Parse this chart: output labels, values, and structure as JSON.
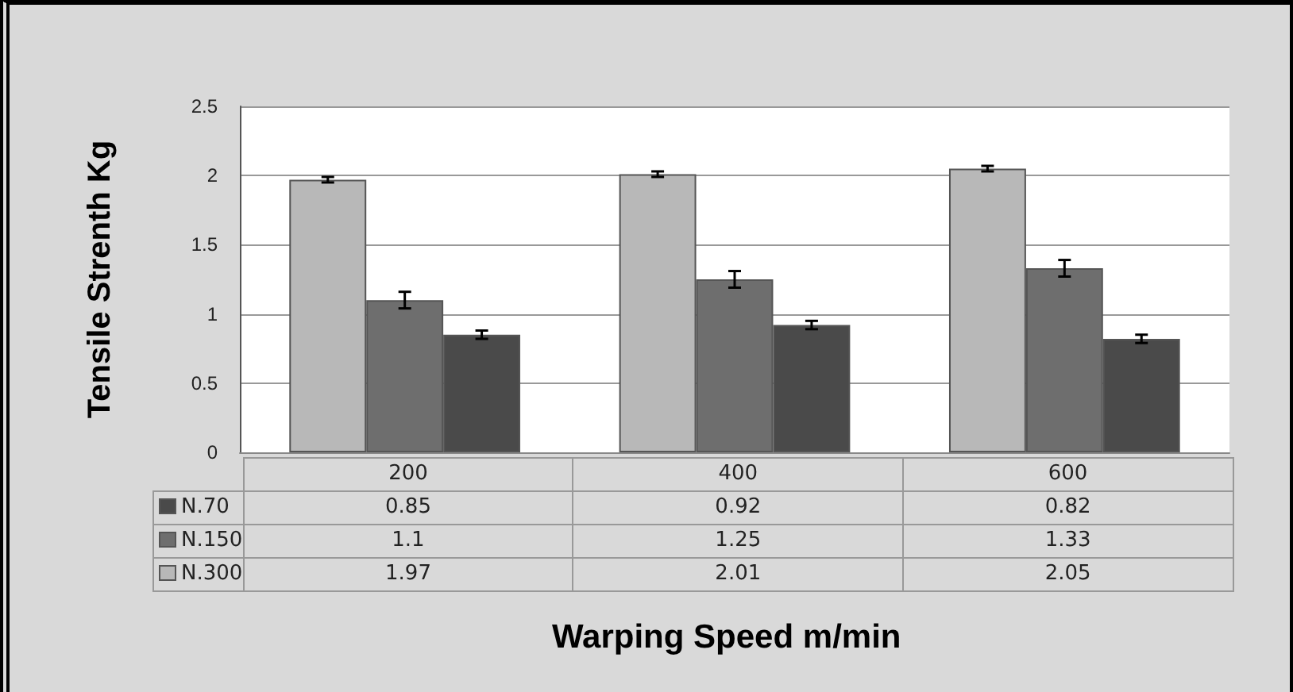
{
  "chart_data": {
    "type": "bar",
    "xlabel": "Warping Speed m/min",
    "ylabel": "Tensile Strenth Kg",
    "categories": [
      "200",
      "400",
      "600"
    ],
    "series": [
      {
        "name": "N.70",
        "color": "#4a4a4a",
        "values": [
          0.85,
          0.92,
          0.82
        ],
        "errors": [
          0.03,
          0.03,
          0.03
        ]
      },
      {
        "name": "N.150",
        "color": "#6e6e6e",
        "values": [
          1.1,
          1.25,
          1.33
        ],
        "errors": [
          0.06,
          0.06,
          0.06
        ]
      },
      {
        "name": "N.300",
        "color": "#b8b8b8",
        "values": [
          1.97,
          2.01,
          2.05
        ],
        "errors": [
          0.02,
          0.02,
          0.02
        ]
      }
    ],
    "ylim": [
      0,
      2.5
    ],
    "yticks": [
      0,
      0.5,
      1,
      1.5,
      2,
      2.5
    ],
    "grid": "y",
    "legend": "bottom",
    "data_labels": true
  }
}
